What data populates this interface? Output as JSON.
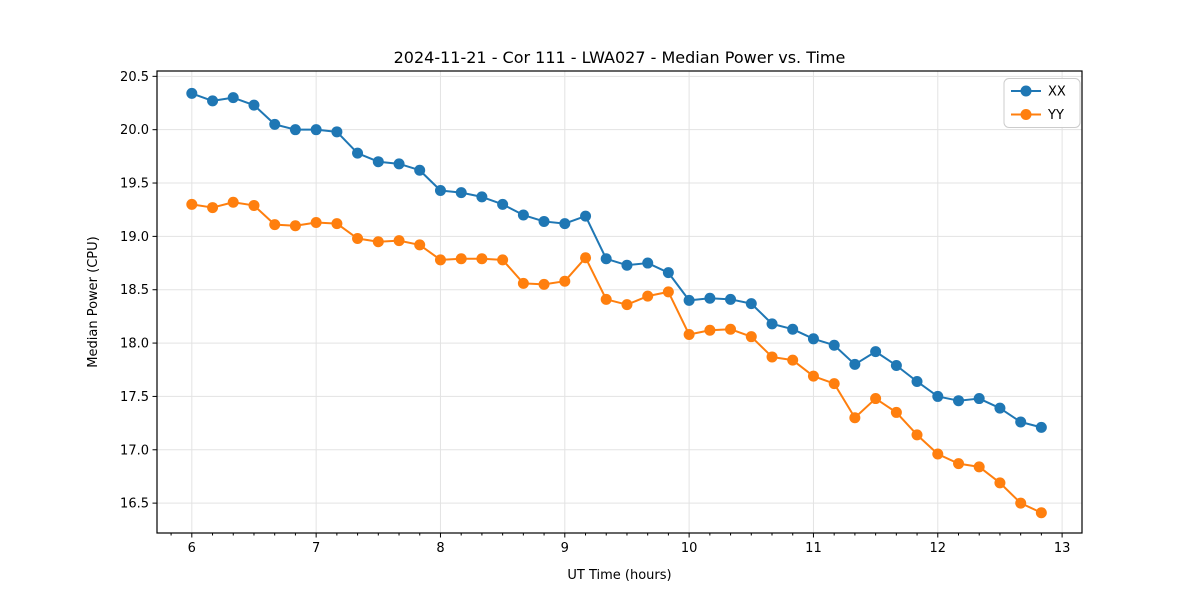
{
  "figure": {
    "background": "#ffffff"
  },
  "chart_data": {
    "type": "line",
    "title": "2024-11-21 - Cor 111 - LWA027 - Median Power vs. Time",
    "xlabel": "UT Time (hours)",
    "ylabel": "Median Power (CPU)",
    "xlim": [
      5.72,
      13.16
    ],
    "ylim": [
      16.22,
      20.55
    ],
    "xticks": [
      6,
      7,
      8,
      9,
      10,
      11,
      12,
      13
    ],
    "xtick_labels": [
      "6",
      "7",
      "8",
      "9",
      "10",
      "11",
      "12",
      "13"
    ],
    "yticks": [
      16.5,
      17.0,
      17.5,
      18.0,
      18.5,
      19.0,
      19.5,
      20.0,
      20.5
    ],
    "ytick_labels": [
      "16.5",
      "17.0",
      "17.5",
      "18.0",
      "18.5",
      "19.0",
      "19.5",
      "20.0",
      "20.5"
    ],
    "minor_tick_step_x": 0.16667,
    "grid": true,
    "grid_color": "#e3e3e3",
    "legend_position": "upper right",
    "x": [
      6.0,
      6.167,
      6.333,
      6.5,
      6.667,
      6.833,
      7.0,
      7.167,
      7.333,
      7.5,
      7.667,
      7.833,
      8.0,
      8.167,
      8.333,
      8.5,
      8.667,
      8.833,
      9.0,
      9.167,
      9.333,
      9.5,
      9.667,
      9.833,
      10.0,
      10.167,
      10.333,
      10.5,
      10.667,
      10.833,
      11.0,
      11.167,
      11.333,
      11.5,
      11.667,
      11.833,
      12.0,
      12.167,
      12.333,
      12.5,
      12.667,
      12.833
    ],
    "series": [
      {
        "name": "XX",
        "color": "#1f77b4",
        "values": [
          20.34,
          20.27,
          20.3,
          20.23,
          20.05,
          20.0,
          20.0,
          19.98,
          19.78,
          19.7,
          19.68,
          19.62,
          19.43,
          19.41,
          19.37,
          19.3,
          19.2,
          19.14,
          19.12,
          19.19,
          18.79,
          18.73,
          18.75,
          18.66,
          18.4,
          18.42,
          18.41,
          18.37,
          18.18,
          18.13,
          18.04,
          17.98,
          17.8,
          17.92,
          17.79,
          17.64,
          17.5,
          17.46,
          17.48,
          17.39,
          17.26,
          17.21
        ]
      },
      {
        "name": "YY",
        "color": "#ff7f0e",
        "values": [
          19.3,
          19.27,
          19.32,
          19.29,
          19.11,
          19.1,
          19.13,
          19.12,
          18.98,
          18.95,
          18.96,
          18.92,
          18.78,
          18.79,
          18.79,
          18.78,
          18.56,
          18.55,
          18.58,
          18.8,
          18.41,
          18.36,
          18.44,
          18.48,
          18.08,
          18.12,
          18.13,
          18.06,
          17.87,
          17.84,
          17.69,
          17.62,
          17.3,
          17.48,
          17.35,
          17.14,
          16.96,
          16.87,
          16.84,
          16.69,
          16.5,
          16.41
        ]
      }
    ]
  }
}
